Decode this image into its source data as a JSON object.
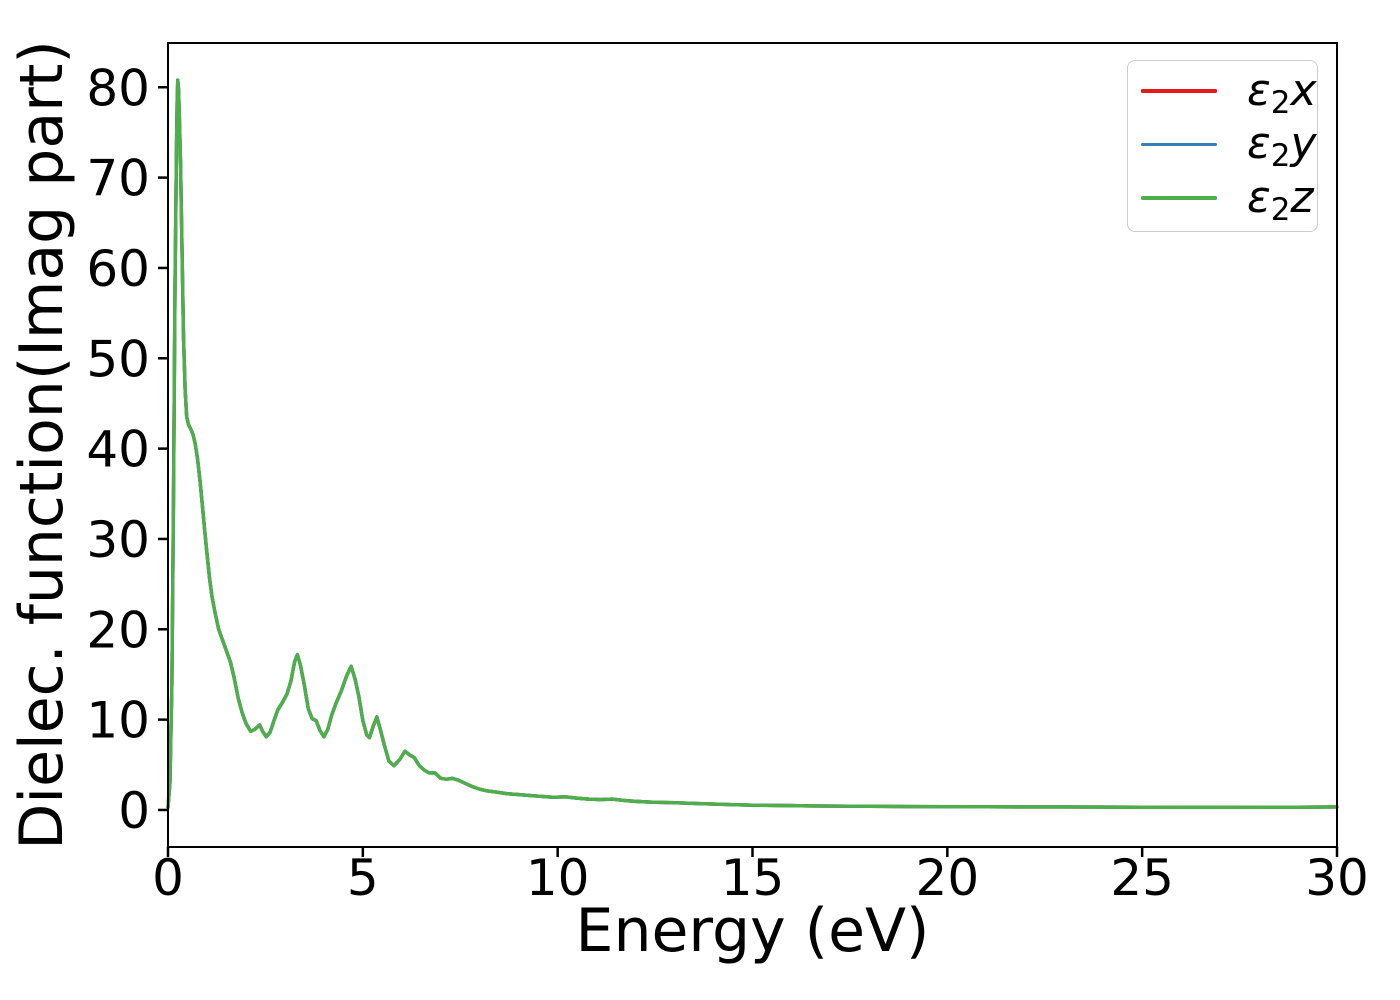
{
  "chart_data": {
    "type": "line",
    "title": "",
    "xlabel": "Energy (eV)",
    "ylabel": "Dielec. function(Imag part)",
    "xlim": [
      0,
      30
    ],
    "ylim": [
      -4.1,
      84.9
    ],
    "xticks": [
      0,
      5,
      10,
      15,
      20,
      25,
      30
    ],
    "yticks": [
      0,
      10,
      20,
      30,
      40,
      50,
      60,
      70,
      80
    ],
    "grid": false,
    "legend_position": "upper right",
    "note": "All three series coincide exactly; only the green ε2z curve (drawn last) is visible in the plot area.",
    "series": [
      {
        "label": "ε2x",
        "symbol": "ε",
        "subscript": "2",
        "variable": "x",
        "color": "#e41a1c"
      },
      {
        "label": "ε2y",
        "symbol": "ε",
        "subscript": "2",
        "variable": "y",
        "color": "#377eb8"
      },
      {
        "label": "ε2z",
        "symbol": "ε",
        "subscript": "2",
        "variable": "z",
        "color": "#4daf4a"
      }
    ],
    "x": [
      0.0,
      0.05,
      0.1,
      0.14,
      0.18,
      0.22,
      0.235,
      0.25,
      0.27,
      0.29,
      0.32,
      0.36,
      0.4,
      0.44,
      0.48,
      0.53,
      0.58,
      0.64,
      0.7,
      0.76,
      0.82,
      0.88,
      0.94,
      1.0,
      1.07,
      1.13,
      1.2,
      1.3,
      1.4,
      1.5,
      1.6,
      1.7,
      1.8,
      1.9,
      2.0,
      2.12,
      2.22,
      2.35,
      2.43,
      2.52,
      2.62,
      2.72,
      2.82,
      2.95,
      3.05,
      3.15,
      3.25,
      3.32,
      3.4,
      3.5,
      3.6,
      3.7,
      3.8,
      3.9,
      4.0,
      4.1,
      4.2,
      4.32,
      4.45,
      4.58,
      4.7,
      4.8,
      4.9,
      5.0,
      5.1,
      5.17,
      5.27,
      5.36,
      5.45,
      5.55,
      5.67,
      5.8,
      5.95,
      6.08,
      6.2,
      6.32,
      6.45,
      6.58,
      6.7,
      6.85,
      7.0,
      7.15,
      7.3,
      7.45,
      7.6,
      7.8,
      8.0,
      8.2,
      8.4,
      8.7,
      9.0,
      9.3,
      9.6,
      9.9,
      10.2,
      10.5,
      10.8,
      11.1,
      11.4,
      11.7,
      12.0,
      12.5,
      13.0,
      13.5,
      14.0,
      14.5,
      15.0,
      15.5,
      16.0,
      16.5,
      17.0,
      17.5,
      18.0,
      19.0,
      20.0,
      21.0,
      22.0,
      23.0,
      24.0,
      25.0,
      26.0,
      27.0,
      28.0,
      29.0,
      30.0
    ],
    "y_shared": [
      0.3,
      3.0,
      14.0,
      34.0,
      58.0,
      74.0,
      78.5,
      80.8,
      79.8,
      77.0,
      72.0,
      62.0,
      52.0,
      46.5,
      43.5,
      42.6,
      42.2,
      41.6,
      40.5,
      38.8,
      36.5,
      33.8,
      31.0,
      28.4,
      25.5,
      23.6,
      22.0,
      20.0,
      18.8,
      17.6,
      16.4,
      14.6,
      12.4,
      10.8,
      9.6,
      8.7,
      8.9,
      9.4,
      8.7,
      8.1,
      8.6,
      9.9,
      11.1,
      12.0,
      12.8,
      14.2,
      16.4,
      17.2,
      16.0,
      13.8,
      11.2,
      10.1,
      9.9,
      8.8,
      8.1,
      8.9,
      10.5,
      11.9,
      13.2,
      14.8,
      15.9,
      14.5,
      12.5,
      9.9,
      8.3,
      8.0,
      9.3,
      10.3,
      8.9,
      7.2,
      5.4,
      4.9,
      5.6,
      6.5,
      6.1,
      5.8,
      4.9,
      4.4,
      4.1,
      4.1,
      3.5,
      3.4,
      3.5,
      3.3,
      3.0,
      2.6,
      2.3,
      2.1,
      2.0,
      1.8,
      1.7,
      1.6,
      1.5,
      1.4,
      1.45,
      1.3,
      1.2,
      1.15,
      1.2,
      1.05,
      0.95,
      0.85,
      0.8,
      0.72,
      0.65,
      0.58,
      0.53,
      0.5,
      0.48,
      0.45,
      0.43,
      0.42,
      0.4,
      0.38,
      0.36,
      0.35,
      0.34,
      0.33,
      0.32,
      0.3,
      0.29,
      0.29,
      0.3,
      0.31,
      0.33
    ],
    "axis_color": "#000000",
    "background_color": "#ffffff"
  }
}
